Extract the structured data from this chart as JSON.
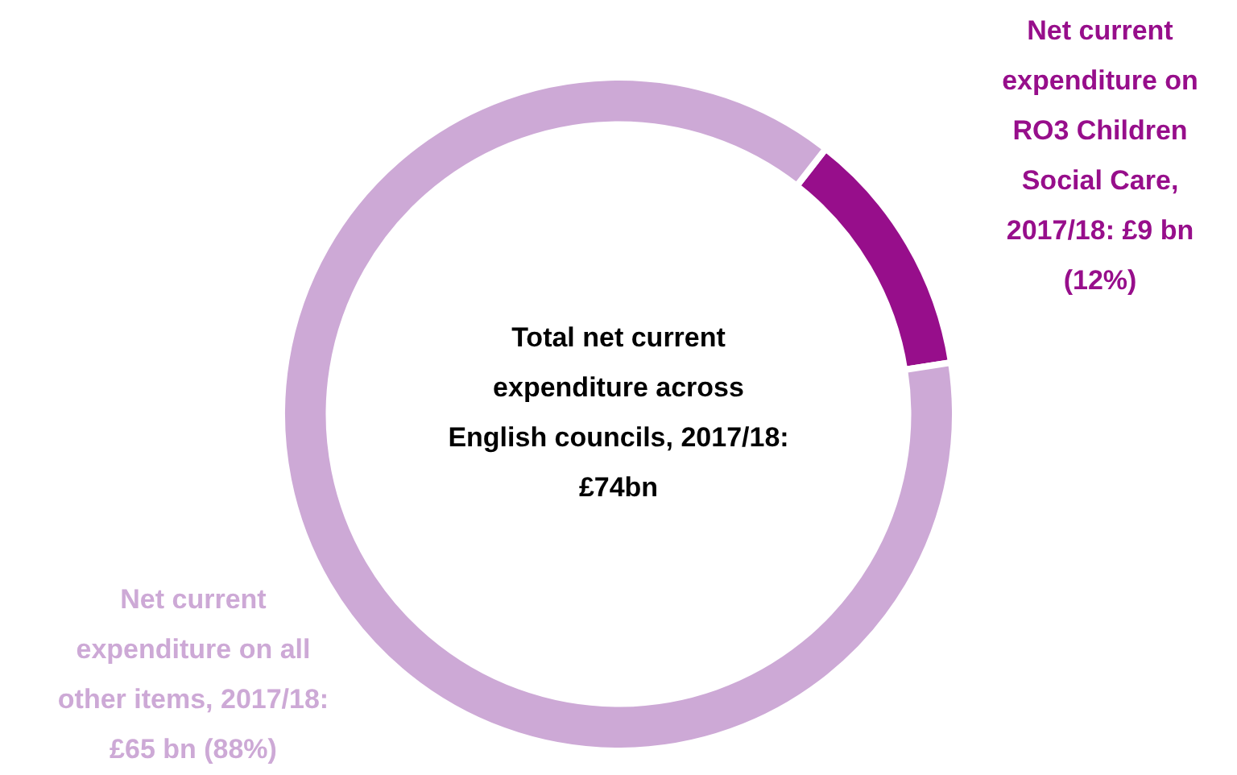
{
  "chart_data": {
    "type": "donut",
    "categories": [
      "Net current expenditure on RO3 Children Social Care, 2017/18: £9 bn (12%)",
      "Net current expenditure on all other items, 2017/18: £65 bn (88%)"
    ],
    "values": [
      12,
      88
    ],
    "colors": [
      "#970e8b",
      "#cda9d6"
    ],
    "annotations": [
      "Total net current expenditure across English councils, 2017/18: £74bn"
    ],
    "legend": false
  }
}
